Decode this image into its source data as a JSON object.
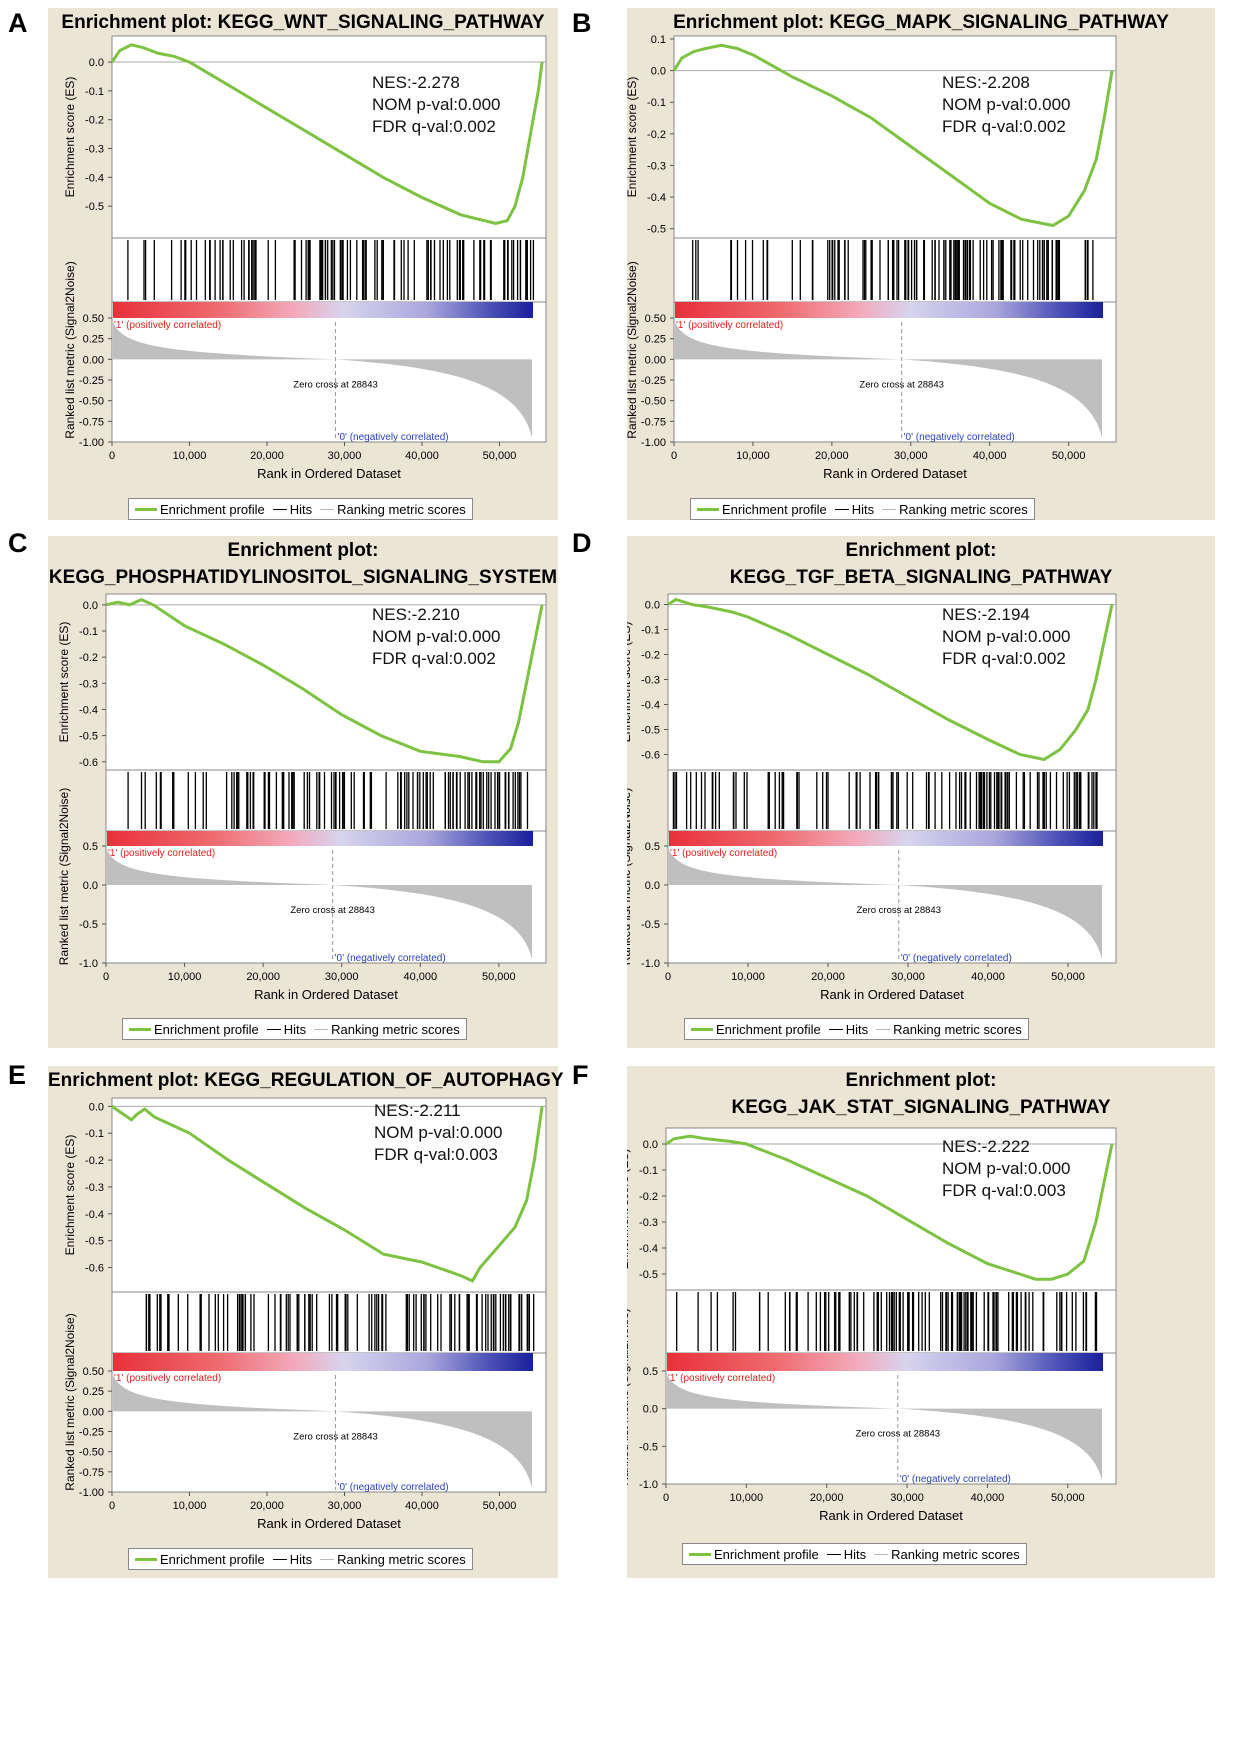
{
  "colors": {
    "background": "#ebe5d6",
    "profile": "#7dc241",
    "hits": "#000000",
    "metric": "#bfbfbf",
    "pos_label": "#e0201c",
    "neg_label": "#2a3fbf"
  },
  "common": {
    "es_ylabel": "Enrichment score (ES)",
    "metric_ylabel": "Ranked list metric (Signal2Noise)",
    "xlabel": "Rank in Ordered Dataset",
    "x_ticks": [
      "0",
      "10,000",
      "20,000",
      "30,000",
      "40,000",
      "50,000"
    ],
    "pos_label": "'1' (positively correlated)",
    "neg_label": "'0' (negatively correlated)",
    "zero_cross": "Zero cross at 28843",
    "legend": {
      "profile": "Enrichment profile",
      "hits": "Hits",
      "metric": "Ranking metric scores"
    }
  },
  "panels": [
    {
      "letter": "A",
      "title_lines": [
        "Enrichment plot: KEGG_WNT_SIGNALING_PATHWAY"
      ],
      "nes": "NES:-2.278",
      "nom": "NOM p-val:0.000",
      "fdr": "FDR q-val:0.002",
      "es_ticks": [
        "0.0",
        "-0.1",
        "-0.2",
        "-0.3",
        "-0.4",
        "-0.5"
      ],
      "metric_ticks": [
        "0.50",
        "0.25",
        "0.00",
        "-0.25",
        "-0.50",
        "-0.75",
        "-1.00"
      ]
    },
    {
      "letter": "B",
      "title_lines": [
        "Enrichment plot: KEGG_MAPK_SIGNALING_PATHWAY"
      ],
      "nes": "NES:-2.208",
      "nom": "NOM p-val:0.000",
      "fdr": "FDR q-val:0.002",
      "es_ticks": [
        "0.1",
        "0.0",
        "-0.1",
        "-0.2",
        "-0.3",
        "-0.4",
        "-0.5"
      ],
      "metric_ticks": [
        "0.50",
        "0.25",
        "0.00",
        "-0.25",
        "-0.50",
        "-0.75",
        "-1.00"
      ]
    },
    {
      "letter": "C",
      "title_lines": [
        "Enrichment plot:",
        "KEGG_PHOSPHATIDYLINOSITOL_SIGNALING_SYSTEM"
      ],
      "nes": "NES:-2.210",
      "nom": "NOM p-val:0.000",
      "fdr": "FDR q-val:0.002",
      "es_ticks": [
        "0.0",
        "-0.1",
        "-0.2",
        "-0.3",
        "-0.4",
        "-0.5",
        "-0.6"
      ],
      "metric_ticks": [
        "0.5",
        "0.0",
        "-0.5",
        "-1.0"
      ]
    },
    {
      "letter": "D",
      "title_lines": [
        "Enrichment plot:",
        "KEGG_TGF_BETA_SIGNALING_PATHWAY"
      ],
      "nes": "NES:-2.194",
      "nom": "NOM p-val:0.000",
      "fdr": "FDR q-val:0.002",
      "es_ticks": [
        "0.0",
        "-0.1",
        "-0.2",
        "-0.3",
        "-0.4",
        "-0.5",
        "-0.6"
      ],
      "metric_ticks": [
        "0.5",
        "0.0",
        "-0.5",
        "-1.0"
      ]
    },
    {
      "letter": "E",
      "title_lines": [
        "Enrichment plot: KEGG_REGULATION_OF_AUTOPHAGY"
      ],
      "nes": "NES:-2.211",
      "nom": "NOM p-val:0.000",
      "fdr": "FDR q-val:0.003",
      "es_ticks": [
        "0.0",
        "-0.1",
        "-0.2",
        "-0.3",
        "-0.4",
        "-0.5",
        "-0.6"
      ],
      "metric_ticks": [
        "0.50",
        "0.25",
        "0.00",
        "-0.25",
        "-0.50",
        "-0.75",
        "-1.00"
      ]
    },
    {
      "letter": "F",
      "title_lines": [
        "Enrichment plot:",
        "KEGG_JAK_STAT_SIGNALING_PATHWAY"
      ],
      "nes": "NES:-2.222",
      "nom": "NOM p-val:0.000",
      "fdr": "FDR q-val:0.003",
      "es_ticks": [
        "0.0",
        "-0.1",
        "-0.2",
        "-0.3",
        "-0.4",
        "-0.5"
      ],
      "metric_ticks": [
        "0.5",
        "0.0",
        "-0.5",
        "-1.0"
      ]
    }
  ],
  "chart_data": [
    {
      "type": "line",
      "panel": "A",
      "title": "Enrichment plot: KEGG_WNT_SIGNALING_PATHWAY",
      "xlabel": "Rank in Ordered Dataset",
      "ylabel": "Enrichment score (ES)",
      "xlim": [
        0,
        56000
      ],
      "ylim": [
        -0.6,
        0.08
      ],
      "series": [
        {
          "x": [
            0,
            1000,
            2500,
            4000,
            6000,
            8000,
            10000,
            15000,
            20000,
            25000,
            30000,
            35000,
            40000,
            45000,
            48000,
            49500,
            51000,
            52000,
            53000,
            54000,
            55000,
            55500
          ],
          "y": [
            0.0,
            0.04,
            0.06,
            0.05,
            0.03,
            0.02,
            0.0,
            -0.08,
            -0.16,
            -0.24,
            -0.32,
            -0.4,
            -0.47,
            -0.53,
            -0.55,
            -0.56,
            -0.55,
            -0.5,
            -0.4,
            -0.25,
            -0.1,
            0.0
          ]
        }
      ],
      "metric": {
        "max": 0.5,
        "min": -1.0,
        "zero_cross": 28843
      }
    },
    {
      "type": "line",
      "panel": "B",
      "title": "Enrichment plot: KEGG_MAPK_SIGNALING_PATHWAY",
      "xlabel": "Rank in Ordered Dataset",
      "ylabel": "Enrichment score (ES)",
      "xlim": [
        0,
        56000
      ],
      "ylim": [
        -0.52,
        0.1
      ],
      "series": [
        {
          "x": [
            0,
            1000,
            2500,
            4000,
            6000,
            8000,
            10000,
            15000,
            20000,
            25000,
            30000,
            35000,
            40000,
            44000,
            46000,
            48000,
            50000,
            52000,
            53500,
            54500,
            55500
          ],
          "y": [
            0.0,
            0.04,
            0.06,
            0.07,
            0.08,
            0.07,
            0.05,
            -0.02,
            -0.08,
            -0.15,
            -0.24,
            -0.33,
            -0.42,
            -0.47,
            -0.48,
            -0.49,
            -0.46,
            -0.38,
            -0.28,
            -0.15,
            0.0
          ]
        }
      ],
      "metric": {
        "max": 0.5,
        "min": -1.0,
        "zero_cross": 28843
      }
    },
    {
      "type": "line",
      "panel": "C",
      "title": "Enrichment plot: KEGG_PHOSPHATIDYLINOSITOL_SIGNALING_SYSTEM",
      "xlabel": "Rank in Ordered Dataset",
      "ylabel": "Enrichment score (ES)",
      "xlim": [
        0,
        56000
      ],
      "ylim": [
        -0.62,
        0.03
      ],
      "series": [
        {
          "x": [
            0,
            1500,
            3000,
            4500,
            6000,
            10000,
            15000,
            20000,
            25000,
            30000,
            35000,
            40000,
            45000,
            48000,
            50000,
            51500,
            52500,
            53500,
            54500,
            55500
          ],
          "y": [
            0.0,
            0.01,
            0.0,
            0.02,
            0.0,
            -0.08,
            -0.15,
            -0.23,
            -0.32,
            -0.42,
            -0.5,
            -0.56,
            -0.58,
            -0.6,
            -0.6,
            -0.55,
            -0.45,
            -0.3,
            -0.15,
            0.0
          ]
        }
      ],
      "metric": {
        "max": 0.5,
        "min": -1.0,
        "zero_cross": 28843
      }
    },
    {
      "type": "line",
      "panel": "D",
      "title": "Enrichment plot: KEGG_TGF_BETA_SIGNALING_PATHWAY",
      "xlabel": "Rank in Ordered Dataset",
      "ylabel": "Enrichment score (ES)",
      "xlim": [
        0,
        56000
      ],
      "ylim": [
        -0.65,
        0.03
      ],
      "series": [
        {
          "x": [
            0,
            1000,
            3000,
            5000,
            8000,
            10000,
            15000,
            20000,
            25000,
            30000,
            35000,
            40000,
            44000,
            47000,
            49000,
            51000,
            52500,
            53500,
            54500,
            55500
          ],
          "y": [
            0.0,
            0.02,
            0.0,
            -0.01,
            -0.03,
            -0.05,
            -0.12,
            -0.2,
            -0.28,
            -0.37,
            -0.46,
            -0.54,
            -0.6,
            -0.62,
            -0.58,
            -0.5,
            -0.42,
            -0.3,
            -0.15,
            0.0
          ]
        }
      ],
      "metric": {
        "max": 0.5,
        "min": -1.0,
        "zero_cross": 28843
      }
    },
    {
      "type": "line",
      "panel": "E",
      "title": "Enrichment plot: KEGG_REGULATION_OF_AUTOPHAGY",
      "xlabel": "Rank in Ordered Dataset",
      "ylabel": "Enrichment score (ES)",
      "xlim": [
        0,
        56000
      ],
      "ylim": [
        -0.68,
        0.02
      ],
      "series": [
        {
          "x": [
            0,
            2500,
            3200,
            4200,
            5500,
            10000,
            15000,
            20000,
            25000,
            30000,
            35000,
            40000,
            45000,
            46500,
            47500,
            49000,
            50500,
            52000,
            53500,
            54500,
            55500
          ],
          "y": [
            0.0,
            -0.05,
            -0.03,
            -0.01,
            -0.04,
            -0.1,
            -0.2,
            -0.29,
            -0.38,
            -0.46,
            -0.55,
            -0.58,
            -0.63,
            -0.65,
            -0.6,
            -0.55,
            -0.5,
            -0.45,
            -0.35,
            -0.2,
            0.0
          ]
        }
      ],
      "metric": {
        "max": 0.5,
        "min": -1.0,
        "zero_cross": 28843
      }
    },
    {
      "type": "line",
      "panel": "F",
      "title": "Enrichment plot: KEGG_JAK_STAT_SIGNALING_PATHWAY",
      "xlabel": "Rank in Ordered Dataset",
      "ylabel": "Enrichment score (ES)",
      "xlim": [
        0,
        56000
      ],
      "ylim": [
        -0.55,
        0.05
      ],
      "series": [
        {
          "x": [
            0,
            1000,
            3000,
            5000,
            8000,
            10000,
            15000,
            20000,
            25000,
            30000,
            35000,
            40000,
            44000,
            46000,
            48000,
            50000,
            52000,
            53500,
            54500,
            55500
          ],
          "y": [
            0.0,
            0.02,
            0.03,
            0.02,
            0.01,
            0.0,
            -0.06,
            -0.13,
            -0.2,
            -0.29,
            -0.38,
            -0.46,
            -0.5,
            -0.52,
            -0.52,
            -0.5,
            -0.45,
            -0.3,
            -0.15,
            0.0
          ]
        }
      ],
      "metric": {
        "max": 0.5,
        "min": -1.0,
        "zero_cross": 28843
      }
    }
  ]
}
